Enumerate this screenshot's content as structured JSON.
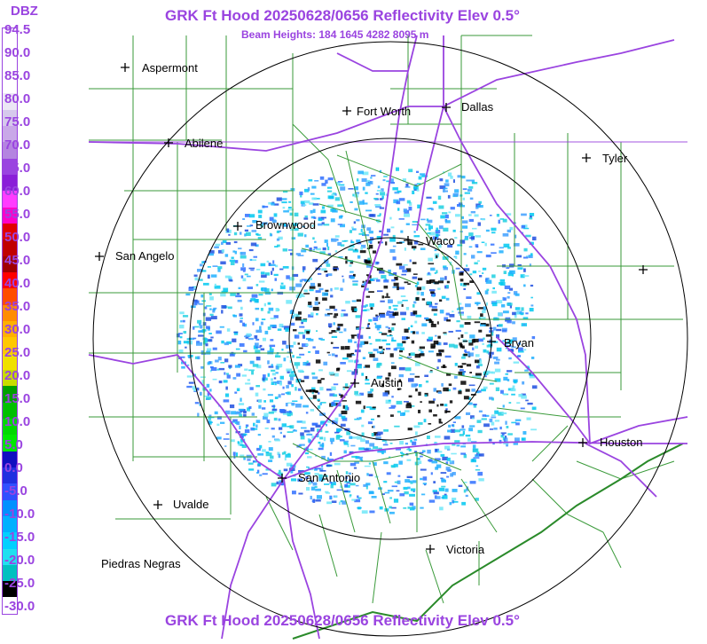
{
  "header": {
    "title": "GRK Ft Hood 20250628/0656 Reflectivity Elev 0.5°",
    "subtitle": "Beam Heights: 184 1645 4282 8095 m"
  },
  "footer": {
    "title": "GRK Ft Hood 20250628/0656 Reflectivity Elev 0.5°"
  },
  "scale": {
    "unit": "DBZ",
    "labels": [
      "94.5",
      "90.0",
      "85.0",
      "80.0",
      "75.0",
      "70.0",
      "65.0",
      "60.0",
      "55.0",
      "50.0",
      "45.0",
      "40.0",
      "35.0",
      "30.0",
      "25.0",
      "20.0",
      "15.0",
      "10.0",
      "5.0",
      "0.0",
      "-5.0",
      "-10.0",
      "-15.0",
      "-20.0",
      "-25.0",
      "-30.0"
    ],
    "colors": [
      "#ffffff",
      "#ffffff",
      "#ffffff",
      "#ffffff",
      "#ece7f5",
      "#d6c9ec",
      "#c9a8e8",
      "#b484e0",
      "#9a44e0",
      "#8a1fd8",
      "#ff3cff",
      "#ff00c8",
      "#e00000",
      "#c00000",
      "#a00000",
      "#ff0000",
      "#ff4c00",
      "#ff8c00",
      "#ffb000",
      "#ffc800",
      "#f0e000",
      "#c8dc00",
      "#00a000",
      "#00c000",
      "#00d800",
      "#00e800",
      "#1010c0",
      "#2030e0",
      "#3050ff",
      "#0090ff",
      "#00b0ff",
      "#00d0ff",
      "#20e0f0",
      "#00c0c0",
      "#000000",
      "#ffffff"
    ]
  },
  "cities": [
    {
      "name": "Aspermont"
    },
    {
      "name": "Fort Worth"
    },
    {
      "name": "Dallas"
    },
    {
      "name": "Abilene"
    },
    {
      "name": "Tyler"
    },
    {
      "name": "Brownwood"
    },
    {
      "name": "Waco"
    },
    {
      "name": "San Angelo"
    },
    {
      "name": "Bryan"
    },
    {
      "name": "Austin"
    },
    {
      "name": "Houston"
    },
    {
      "name": "San Antonio"
    },
    {
      "name": "Uvalde"
    },
    {
      "name": "Victoria"
    },
    {
      "name": "Piedras Negras"
    }
  ],
  "colors": {
    "accent": "#9a44e0",
    "county_lines": "#3a9a3a",
    "highways": "#9a44e0",
    "range_rings": "#000000"
  }
}
